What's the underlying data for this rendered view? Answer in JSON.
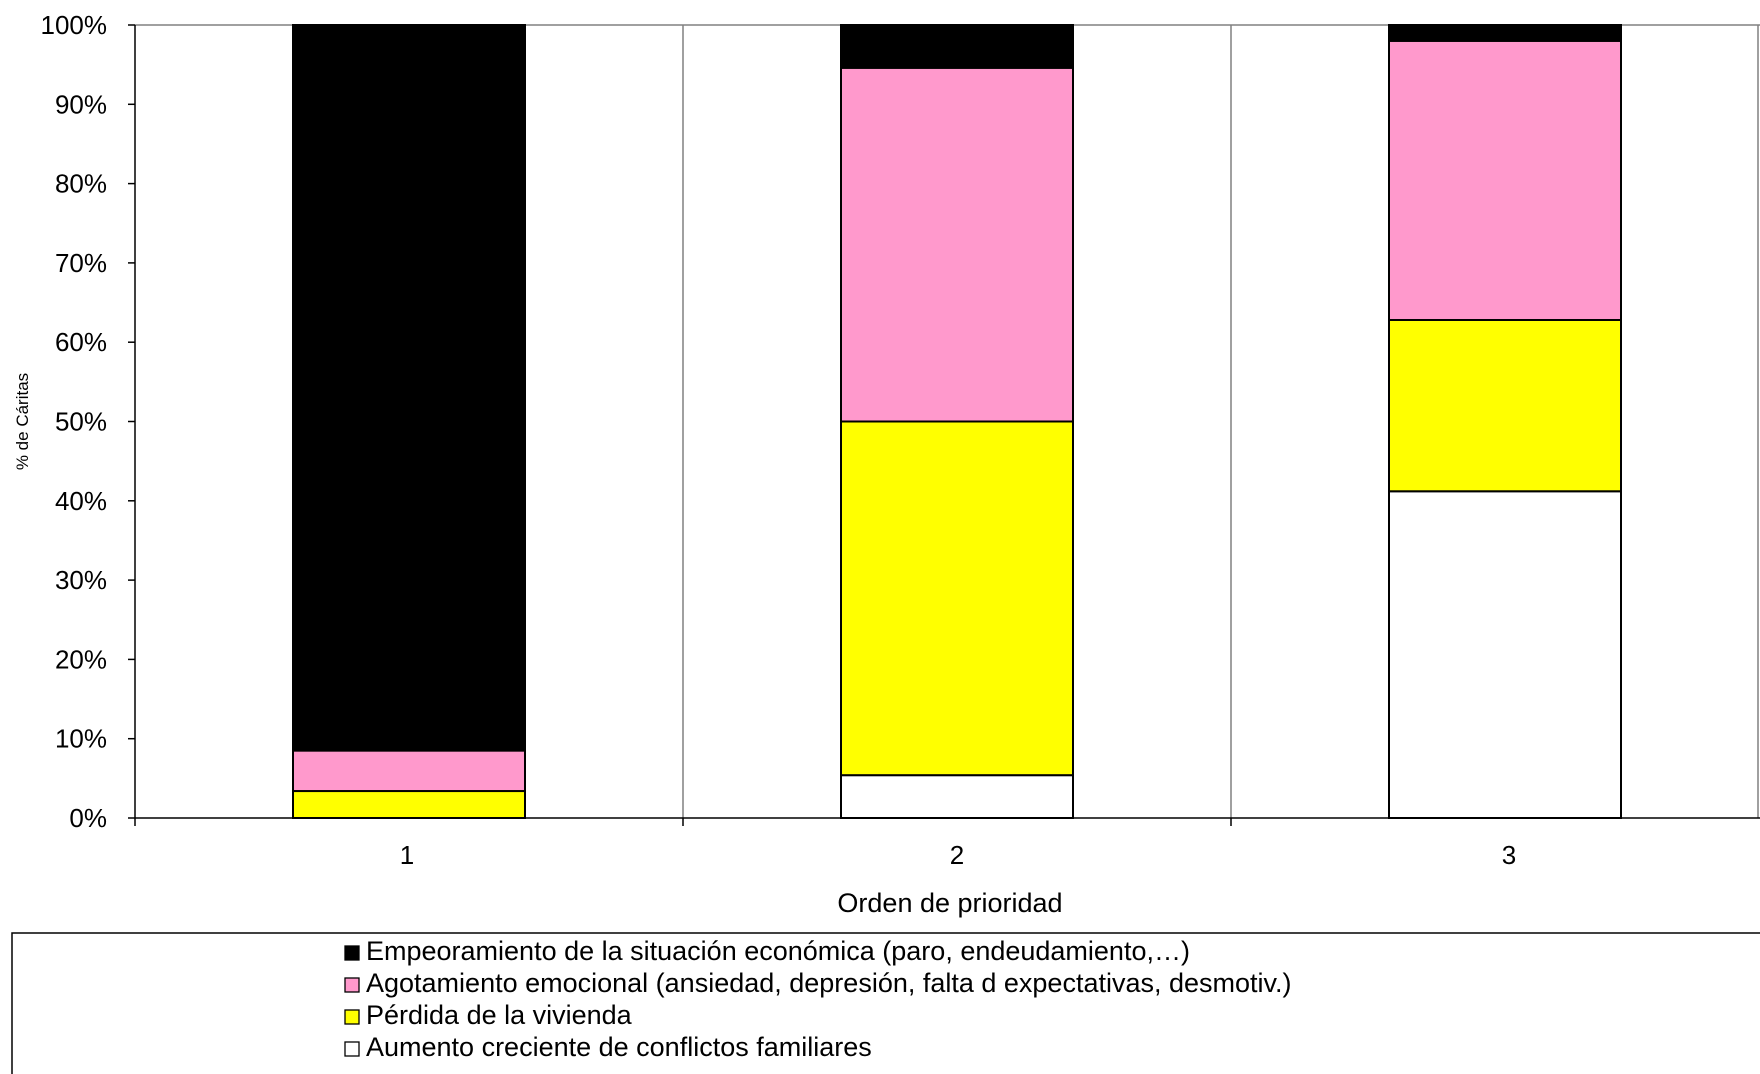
{
  "chart_data": {
    "type": "bar",
    "stacked": true,
    "percent_stacked": true,
    "categories": [
      "1",
      "2",
      "3"
    ],
    "series": [
      {
        "name": "Aumento creciente de conflictos familiares",
        "color": "#ffffff",
        "values": [
          0,
          5.4,
          41.2
        ]
      },
      {
        "name": "Pérdida de la vivienda",
        "color": "#ffff00",
        "values": [
          3.4,
          44.6,
          21.6
        ]
      },
      {
        "name": "Agotamiento emocional  (ansiedad, depresión, falta d expectativas, desmotiv.)",
        "color": "#ff99cc",
        "values": [
          5.1,
          44.6,
          35.2
        ]
      },
      {
        "name": "Empeoramiento de la situación económica (paro, endeudamiento,…)",
        "color": "#000000",
        "values": [
          91.5,
          5.4,
          2.0
        ]
      }
    ],
    "xlabel": "Orden de prioridad",
    "ylabel": "% de Cáritas",
    "ylim": [
      0,
      100
    ],
    "y_ticks": [
      "0%",
      "10%",
      "20%",
      "30%",
      "40%",
      "50%",
      "60%",
      "70%",
      "80%",
      "90%",
      "100%"
    ],
    "grid": "vertical category separators",
    "legend": {
      "placement": "bottom",
      "order": [
        "Empeoramiento de la situación económica (paro, endeudamiento,…)",
        "Agotamiento emocional  (ansiedad, depresión, falta d expectativas, desmotiv.)",
        "Pérdida de la vivienda",
        "Aumento creciente de conflictos familiares"
      ]
    }
  }
}
